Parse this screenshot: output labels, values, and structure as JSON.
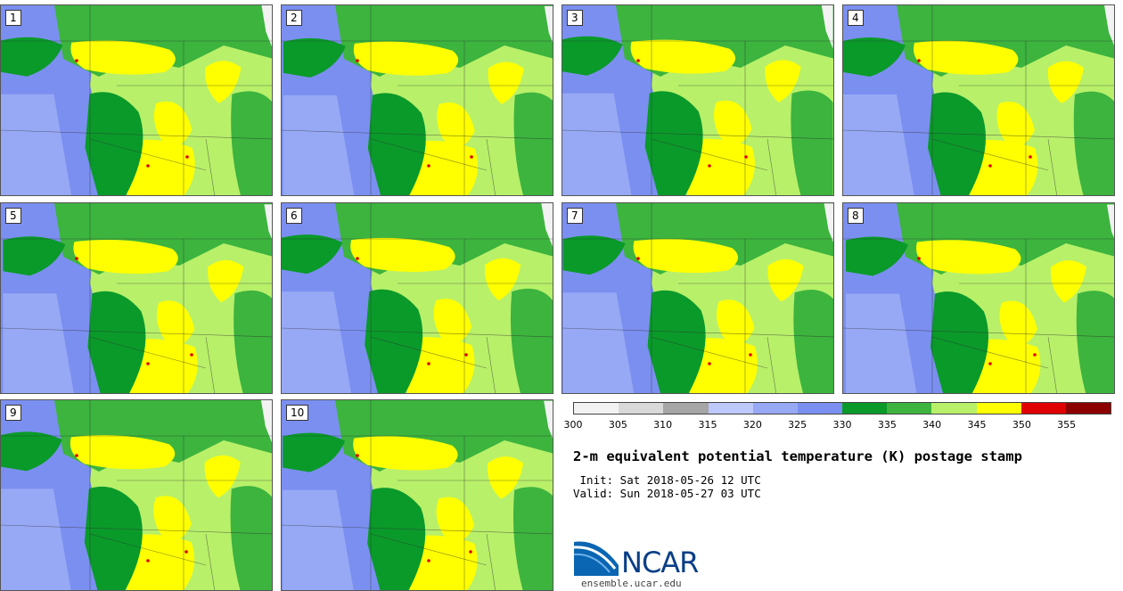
{
  "panels": [
    {
      "label": "1"
    },
    {
      "label": "2"
    },
    {
      "label": "3"
    },
    {
      "label": "4"
    },
    {
      "label": "5"
    },
    {
      "label": "6"
    },
    {
      "label": "7"
    },
    {
      "label": "8"
    },
    {
      "label": "9"
    },
    {
      "label": "10"
    }
  ],
  "colorbar": {
    "ticks": [
      "300",
      "305",
      "310",
      "315",
      "320",
      "325",
      "330",
      "335",
      "340",
      "345",
      "350",
      "355"
    ],
    "colors": [
      "#f2f2f2",
      "#d9d9d9",
      "#a6a6a6",
      "#bcc9fa",
      "#97a9f5",
      "#7b8ff0",
      "#0a9a2a",
      "#3cb43e",
      "#b8f06a",
      "#ffff00",
      "#e00000",
      "#8c0000"
    ]
  },
  "title": "2-m equivalent potential temperature (K) postage stamp",
  "init": " Init: Sat 2018-05-26 12 UTC",
  "valid": "Valid: Sun 2018-05-27 03 UTC",
  "logo": {
    "text": "NCAR",
    "url_text": "ensemble.ucar.edu",
    "color": "#0a3f87"
  }
}
